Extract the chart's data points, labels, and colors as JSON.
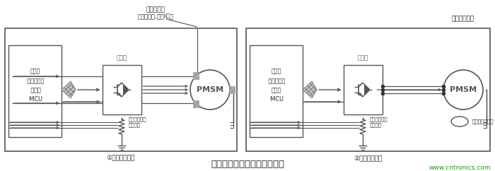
{
  "bg_color": "#ffffff",
  "title": "电机驱动控制系统的基本组成",
  "title_fontsize": 9,
  "watermark": "www.cntronics.com",
  "watermark_color": "#00aa00",
  "diagram1_label": "①有传感器驱动",
  "diagram2_label": "②无传感器驱动",
  "sensor_label1": "位置传感器",
  "sensor_label2": "（霍尔元件,霍尔IC）",
  "no_sensor_label": "无位置传感器",
  "inverter_label": "逆变器",
  "resistor_label1": "逆变器保护用",
  "resistor_label2": "分流电阻",
  "pmsm_label": "PMSM",
  "controller_text1": "控制器\n·硬布线逻辑\n 控制器\n·MCU",
  "controller_text2": "控制器\n·硬布线逻辑\n控制器\n·MCU",
  "speed_detect_label": "速度电动势检测",
  "line_color": "#555555",
  "dark_color": "#333333"
}
